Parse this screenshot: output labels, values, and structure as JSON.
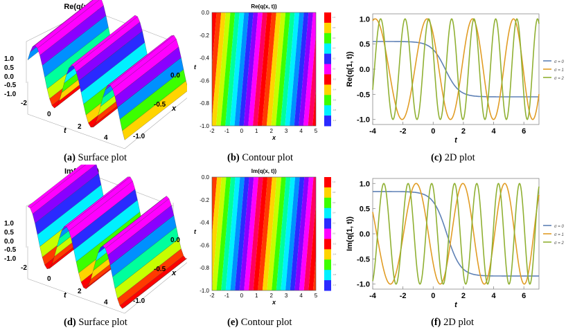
{
  "captions": [
    {
      "tag": "(a)",
      "text": "Surface plot"
    },
    {
      "tag": "(b)",
      "text": "Contour plot"
    },
    {
      "tag": "(c)",
      "text": "2D plot"
    },
    {
      "tag": "(d)",
      "text": "Surface plot"
    },
    {
      "tag": "(e)",
      "text": "Contour plot"
    },
    {
      "tag": "(f)",
      "text": "2D plot"
    }
  ],
  "chart_data": [
    {
      "panel": "a",
      "type": "surface",
      "title": "Re(q(x, t))",
      "z_ticks": [
        "1.0",
        "0.5",
        "0.0",
        "-0.5",
        "-1.0"
      ],
      "t_ticks": [
        "-2",
        "0",
        "2",
        "4"
      ],
      "x_ticks": [
        "0.0",
        "-0.5",
        "-1.0"
      ],
      "xlabel": "x",
      "tlabel": "t"
    },
    {
      "panel": "b",
      "type": "heatmap",
      "title": "Re(q(x, t))",
      "x_ticks": [
        "-2",
        "-1",
        "0",
        "1",
        "2",
        "3",
        "4",
        "5"
      ],
      "y_ticks": [
        "0.0",
        "-0.2",
        "-0.4",
        "-0.6",
        "-0.8",
        "-1.0"
      ],
      "xlabel": "x",
      "ylabel": "t",
      "xlim": [
        -2,
        5
      ],
      "ylim": [
        -1,
        0
      ],
      "colorbar_levels": [
        "1.0",
        "0.8",
        "0.6",
        "0.4",
        "0.2",
        "0.0",
        "-0.2",
        "-0.4",
        "-0.6",
        "-0.8",
        "-1.0"
      ]
    },
    {
      "panel": "c",
      "type": "line",
      "title": "",
      "xlabel": "t",
      "ylabel": "Re(q(1, t))",
      "xlim": [
        -4,
        7
      ],
      "ylim": [
        -1.1,
        1.1
      ],
      "x_ticks": [
        "-4",
        "-2",
        "0",
        "2",
        "4",
        "6"
      ],
      "y_ticks": [
        "1.0",
        "0.5",
        "0.0",
        "-0.5",
        "-1.0"
      ],
      "series": [
        {
          "name": "σ = 0",
          "color": "#5e81b5",
          "kind": "step",
          "from": 0.55,
          "to": -0.55,
          "center": 0.8
        },
        {
          "name": "σ = 1",
          "color": "#e19c24",
          "kind": "osc",
          "omega": 4.0,
          "phase": 0.8
        },
        {
          "name": "σ = 2",
          "color": "#8fb032",
          "kind": "osc",
          "omega": 8.2,
          "phase": 1.2
        }
      ]
    },
    {
      "panel": "d",
      "type": "surface",
      "title": "Im(q(x, t))",
      "z_ticks": [
        "1.0",
        "0.5",
        "0.0",
        "-0.5",
        "-1.0"
      ],
      "t_ticks": [
        "-2",
        "0",
        "2",
        "4"
      ],
      "x_ticks": [
        "0.0",
        "-0.5",
        "-1.0"
      ],
      "xlabel": "x",
      "tlabel": "t"
    },
    {
      "panel": "e",
      "type": "heatmap",
      "title": "Im(q(x, t))",
      "x_ticks": [
        "-2",
        "-1",
        "0",
        "1",
        "2",
        "3",
        "4",
        "5"
      ],
      "y_ticks": [
        "0.0",
        "-0.2",
        "-0.4",
        "-0.6",
        "-0.8",
        "-1.0"
      ],
      "xlabel": "x",
      "ylabel": "t",
      "xlim": [
        -2,
        5
      ],
      "ylim": [
        -1,
        0
      ],
      "colorbar_levels": [
        "1.0",
        "0.8",
        "0.6",
        "0.4",
        "0.2",
        "0.0",
        "-0.2",
        "-0.4",
        "-0.6",
        "-0.8",
        "-1.0"
      ]
    },
    {
      "panel": "f",
      "type": "line",
      "title": "",
      "xlabel": "t",
      "ylabel": "Im(q(1, t))",
      "xlim": [
        -4,
        7
      ],
      "ylim": [
        -1.1,
        1.1
      ],
      "x_ticks": [
        "-4",
        "-2",
        "0",
        "2",
        "4",
        "6"
      ],
      "y_ticks": [
        "1.0",
        "0.5",
        "0.0",
        "-0.5",
        "-1.0"
      ],
      "series": [
        {
          "name": "σ = 0",
          "color": "#5e81b5",
          "kind": "step",
          "from": 0.84,
          "to": -0.84,
          "center": 0.9
        },
        {
          "name": "σ = 1",
          "color": "#e19c24",
          "kind": "osc",
          "omega": 4.0,
          "phase": 2.2
        },
        {
          "name": "σ = 2",
          "color": "#8fb032",
          "kind": "osc",
          "omega": 8.2,
          "phase": 0.4
        }
      ]
    }
  ]
}
